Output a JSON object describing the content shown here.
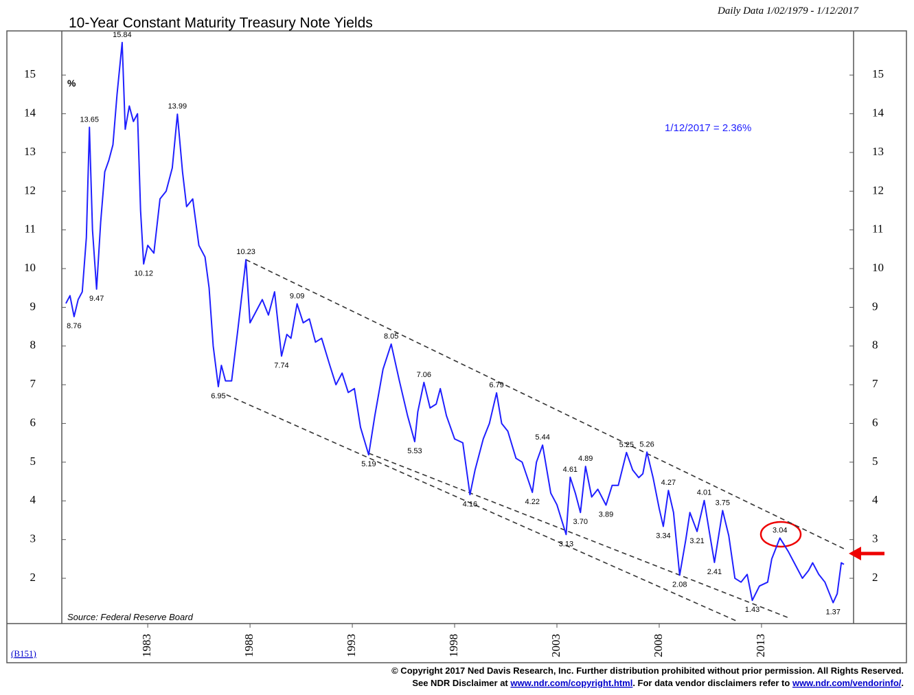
{
  "chart_data": {
    "type": "line",
    "title": "10-Year Constant Maturity Treasury Note Yields",
    "subtitle": "Daily Data 1/02/1979 - 1/12/2017",
    "y_unit": "%",
    "callout": "1/12/2017 = 2.36%",
    "source": "Source: Federal Reserve Board",
    "code": "(B151)",
    "xlim": [
      1978.8,
      2017.5
    ],
    "xticks": [
      1983,
      1988,
      1993,
      1998,
      2003,
      2008,
      2013
    ],
    "ylim": [
      0.83,
      16.14
    ],
    "yticks": [
      2,
      3,
      4,
      5,
      6,
      7,
      8,
      9,
      10,
      11,
      12,
      13,
      14,
      15
    ],
    "series": [
      {
        "color": "#1f1fff",
        "x": [
          1979.0,
          1979.2,
          1979.4,
          1979.6,
          1979.8,
          1980.0,
          1980.15,
          1980.3,
          1980.5,
          1980.7,
          1980.9,
          1981.1,
          1981.3,
          1981.5,
          1981.75,
          1981.9,
          1982.1,
          1982.3,
          1982.5,
          1982.65,
          1982.8,
          1983.0,
          1983.3,
          1983.6,
          1983.9,
          1984.2,
          1984.45,
          1984.7,
          1984.9,
          1985.2,
          1985.5,
          1985.8,
          1986.0,
          1986.2,
          1986.45,
          1986.6,
          1986.8,
          1987.1,
          1987.4,
          1987.8,
          1988.0,
          1988.3,
          1988.6,
          1988.9,
          1989.2,
          1989.54,
          1989.8,
          1990.0,
          1990.3,
          1990.6,
          1990.9,
          1991.2,
          1991.5,
          1991.9,
          1992.2,
          1992.5,
          1992.8,
          1993.1,
          1993.4,
          1993.8,
          1994.1,
          1994.5,
          1994.9,
          1995.3,
          1995.7,
          1996.05,
          1996.2,
          1996.5,
          1996.8,
          1997.1,
          1997.3,
          1997.6,
          1998.0,
          1998.4,
          1998.75,
          1999.0,
          1999.4,
          1999.7,
          2000.05,
          2000.3,
          2000.6,
          2001.0,
          2001.3,
          2001.8,
          2002.0,
          2002.3,
          2002.7,
          2003.0,
          2003.45,
          2003.65,
          2003.9,
          2004.15,
          2004.4,
          2004.7,
          2005.0,
          2005.4,
          2005.7,
          2006.0,
          2006.4,
          2006.7,
          2007.0,
          2007.2,
          2007.4,
          2007.7,
          2008.0,
          2008.2,
          2008.45,
          2008.7,
          2009.0,
          2009.3,
          2009.5,
          2009.85,
          2010.2,
          2010.45,
          2010.7,
          2011.1,
          2011.4,
          2011.7,
          2012.0,
          2012.3,
          2012.55,
          2012.9,
          2013.3,
          2013.5,
          2013.9,
          2014.3,
          2014.6,
          2015.0,
          2015.3,
          2015.5,
          2015.8,
          2016.1,
          2016.5,
          2016.7,
          2016.9,
          2017.03
        ],
        "values": [
          9.1,
          9.3,
          8.76,
          9.2,
          9.4,
          10.8,
          13.65,
          11.0,
          9.47,
          11.2,
          12.5,
          12.8,
          13.2,
          14.5,
          15.84,
          13.6,
          14.2,
          13.8,
          14.0,
          11.5,
          10.12,
          10.6,
          10.4,
          11.8,
          12.0,
          12.6,
          13.99,
          12.5,
          11.6,
          11.8,
          10.6,
          10.3,
          9.5,
          8.0,
          6.95,
          7.5,
          7.1,
          7.1,
          8.4,
          10.23,
          8.6,
          8.9,
          9.2,
          8.8,
          9.4,
          7.74,
          8.3,
          8.2,
          9.09,
          8.6,
          8.7,
          8.1,
          8.2,
          7.5,
          7.0,
          7.3,
          6.8,
          6.9,
          5.9,
          5.19,
          6.2,
          7.4,
          8.05,
          7.1,
          6.2,
          5.53,
          6.3,
          7.06,
          6.4,
          6.5,
          6.9,
          6.2,
          5.6,
          5.5,
          4.16,
          4.8,
          5.6,
          6.0,
          6.79,
          6.0,
          5.8,
          5.1,
          5.0,
          4.22,
          5.0,
          5.44,
          4.2,
          3.9,
          3.13,
          4.61,
          4.2,
          3.7,
          4.89,
          4.1,
          4.3,
          3.89,
          4.4,
          4.4,
          5.25,
          4.8,
          4.6,
          4.7,
          5.26,
          4.6,
          3.8,
          3.34,
          4.27,
          3.7,
          2.08,
          3.0,
          3.7,
          3.21,
          4.01,
          3.2,
          2.41,
          3.75,
          3.1,
          2.0,
          1.9,
          2.1,
          1.43,
          1.8,
          1.9,
          2.5,
          3.04,
          2.7,
          2.4,
          2.0,
          2.2,
          2.4,
          2.1,
          1.9,
          1.37,
          1.6,
          2.4,
          2.36
        ]
      }
    ],
    "annotations": [
      {
        "text": "8.76",
        "x": 1979.4,
        "y": 8.76
      },
      {
        "text": "13.65",
        "x": 1980.15,
        "y": 13.65
      },
      {
        "text": "9.47",
        "x": 1980.5,
        "y": 9.47
      },
      {
        "text": "15.84",
        "x": 1981.75,
        "y": 15.84
      },
      {
        "text": "10.12",
        "x": 1982.8,
        "y": 10.12
      },
      {
        "text": "13.99",
        "x": 1984.45,
        "y": 13.99
      },
      {
        "text": "6.95",
        "x": 1986.45,
        "y": 6.95
      },
      {
        "text": "10.23",
        "x": 1987.8,
        "y": 10.23
      },
      {
        "text": "7.74",
        "x": 1989.54,
        "y": 7.74
      },
      {
        "text": "9.09",
        "x": 1990.3,
        "y": 9.09
      },
      {
        "text": "5.19",
        "x": 1993.8,
        "y": 5.19
      },
      {
        "text": "8.05",
        "x": 1994.9,
        "y": 8.05
      },
      {
        "text": "5.53",
        "x": 1996.05,
        "y": 5.53
      },
      {
        "text": "7.06",
        "x": 1996.5,
        "y": 7.06
      },
      {
        "text": "4.16",
        "x": 1998.75,
        "y": 4.16
      },
      {
        "text": "6.79",
        "x": 2000.05,
        "y": 6.79
      },
      {
        "text": "4.22",
        "x": 2001.8,
        "y": 4.22
      },
      {
        "text": "5.44",
        "x": 2002.3,
        "y": 5.44
      },
      {
        "text": "3.13",
        "x": 2003.45,
        "y": 3.13
      },
      {
        "text": "4.61",
        "x": 2003.65,
        "y": 4.61
      },
      {
        "text": "3.70",
        "x": 2004.15,
        "y": 3.7
      },
      {
        "text": "4.89",
        "x": 2004.4,
        "y": 4.89
      },
      {
        "text": "3.89",
        "x": 2005.4,
        "y": 3.89
      },
      {
        "text": "5.25",
        "x": 2006.4,
        "y": 5.25
      },
      {
        "text": "5.26",
        "x": 2007.4,
        "y": 5.26
      },
      {
        "text": "3.34",
        "x": 2008.2,
        "y": 3.34
      },
      {
        "text": "4.27",
        "x": 2008.45,
        "y": 4.27
      },
      {
        "text": "2.08",
        "x": 2009.0,
        "y": 2.08
      },
      {
        "text": "3.21",
        "x": 2009.85,
        "y": 3.21
      },
      {
        "text": "4.01",
        "x": 2010.2,
        "y": 4.01
      },
      {
        "text": "2.41",
        "x": 2010.7,
        "y": 2.41
      },
      {
        "text": "3.75",
        "x": 2011.1,
        "y": 3.75
      },
      {
        "text": "1.43",
        "x": 2012.55,
        "y": 1.43
      },
      {
        "text": "3.04",
        "x": 2013.9,
        "y": 3.04
      },
      {
        "text": "1.37",
        "x": 2016.5,
        "y": 1.37
      }
    ],
    "trendlines": [
      {
        "x": [
          1987.8,
          2017.12
        ],
        "y": [
          10.23,
          2.74
        ]
      },
      {
        "x": [
          1986.85,
          2011.85
        ],
        "y": [
          6.74,
          0.88
        ]
      },
      {
        "x": [
          1993.8,
          2014.37
        ],
        "y": [
          5.23,
          0.97
        ]
      }
    ],
    "footer": {
      "line1": "© Copyright 2017 Ned Davis Research, Inc.  Further distribution prohibited without prior permission.  All Rights Reserved.",
      "line2a": "See NDR Disclaimer at ",
      "link1": "www.ndr.com/copyright.html",
      "line2b": ".  For data vendor disclaimers refer to ",
      "link2": "www.ndr.com/vendorinfo/",
      "line2c": "."
    }
  }
}
